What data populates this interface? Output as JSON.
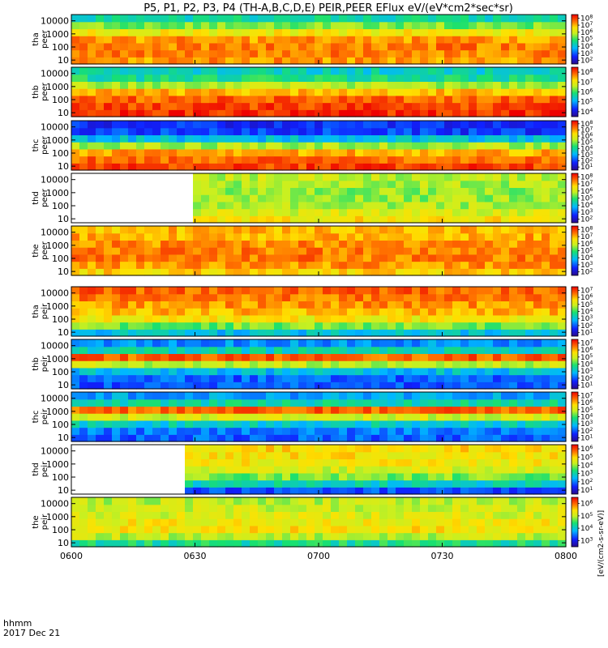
{
  "chart_data": {
    "type": "heatmap",
    "title": "P5, P1, P2, P3, P4 (TH-A,B,C,D,E) PEIR,PEER EFlux eV/(eV*cm2*sec*sr)",
    "colorbar_label": "[eV/(cm2-s-sr-eV)]",
    "x_ticks": [
      "0600",
      "0630",
      "0700",
      "0730",
      "0800"
    ],
    "x_label": "hhmm",
    "date_label": "2017 Dec 21",
    "x_range": [
      "06:00",
      "08:00"
    ],
    "y_ticks": [
      "10",
      "100",
      "1000",
      "10000"
    ],
    "y_scale": "log",
    "y_range": [
      5,
      30000
    ],
    "panels": [
      {
        "ylabel_top": "tha",
        "ylabel_bottom": "peer",
        "cb_ticks": [
          "10^2",
          "10^3",
          "10^4",
          "10^5",
          "10^6",
          "10^7",
          "10^8"
        ],
        "base": [
          0.82,
          0.84,
          0.85,
          0.82,
          0.7,
          0.55,
          0.42
        ],
        "no_data_until": 0
      },
      {
        "ylabel_top": "thb",
        "ylabel_bottom": "peer",
        "cb_ticks": [
          "10^4",
          "10^5",
          "10^6",
          "10^7",
          "10^8"
        ],
        "base": [
          0.95,
          0.92,
          0.88,
          0.78,
          0.6,
          0.45,
          0.4
        ],
        "no_data_until": 0
      },
      {
        "ylabel_top": "thc",
        "ylabel_bottom": "peer",
        "cb_ticks": [
          "10^1",
          "10^2",
          "10^3",
          "10^4",
          "10^5",
          "10^6",
          "10^7",
          "10^8"
        ],
        "base": [
          0.92,
          0.88,
          0.8,
          0.6,
          0.35,
          0.18,
          0.15
        ],
        "no_data_until": 0
      },
      {
        "ylabel_top": "thd",
        "ylabel_bottom": "peer",
        "cb_ticks": [
          "10^2",
          "10^3",
          "10^4",
          "10^5",
          "10^6",
          "10^7",
          "10^8"
        ],
        "base": [
          0.72,
          0.66,
          0.6,
          0.58,
          0.58,
          0.6,
          0.62
        ],
        "no_data_until": 0.235
      },
      {
        "ylabel_top": "the",
        "ylabel_bottom": "peer",
        "cb_ticks": [
          "10^2",
          "10^3",
          "10^4",
          "10^5",
          "10^6",
          "10^7",
          "10^8"
        ],
        "base": [
          0.75,
          0.82,
          0.85,
          0.85,
          0.83,
          0.8,
          0.78
        ],
        "no_data_until": 0
      },
      {
        "ylabel_top": "tha",
        "ylabel_bottom": "peir",
        "cb_ticks": [
          "10^1",
          "10^2",
          "10^3",
          "10^4",
          "10^5",
          "10^6",
          "10^7"
        ],
        "base": [
          0.35,
          0.55,
          0.7,
          0.78,
          0.82,
          0.85,
          0.88
        ],
        "no_data_until": 0
      },
      {
        "ylabel_top": "thb",
        "ylabel_bottom": "peir",
        "cb_ticks": [
          "10^1",
          "10^2",
          "10^3",
          "10^4",
          "10^5",
          "10^6",
          "10^7"
        ],
        "base": [
          0.2,
          0.22,
          0.35,
          0.62,
          0.88,
          0.4,
          0.28
        ],
        "no_data_until": 0
      },
      {
        "ylabel_top": "thc",
        "ylabel_bottom": "peir",
        "cb_ticks": [
          "10^1",
          "10^2",
          "10^3",
          "10^4",
          "10^5",
          "10^6",
          "10^7"
        ],
        "base": [
          0.22,
          0.25,
          0.38,
          0.65,
          0.88,
          0.42,
          0.3
        ],
        "no_data_until": 0
      },
      {
        "ylabel_top": "thd",
        "ylabel_bottom": "peir",
        "cb_ticks": [
          "10^1",
          "10^2",
          "10^3",
          "10^4",
          "10^5",
          "10^6"
        ],
        "base": [
          0.2,
          0.4,
          0.55,
          0.65,
          0.7,
          0.72,
          0.74
        ],
        "no_data_until": 0.225
      },
      {
        "ylabel_top": "the",
        "ylabel_bottom": "peir",
        "cb_ticks": [
          "10^3",
          "10^4",
          "10^5",
          "10^6"
        ],
        "base": [
          0.45,
          0.62,
          0.72,
          0.7,
          0.66,
          0.64,
          0.62
        ],
        "no_data_until": 0
      }
    ]
  }
}
